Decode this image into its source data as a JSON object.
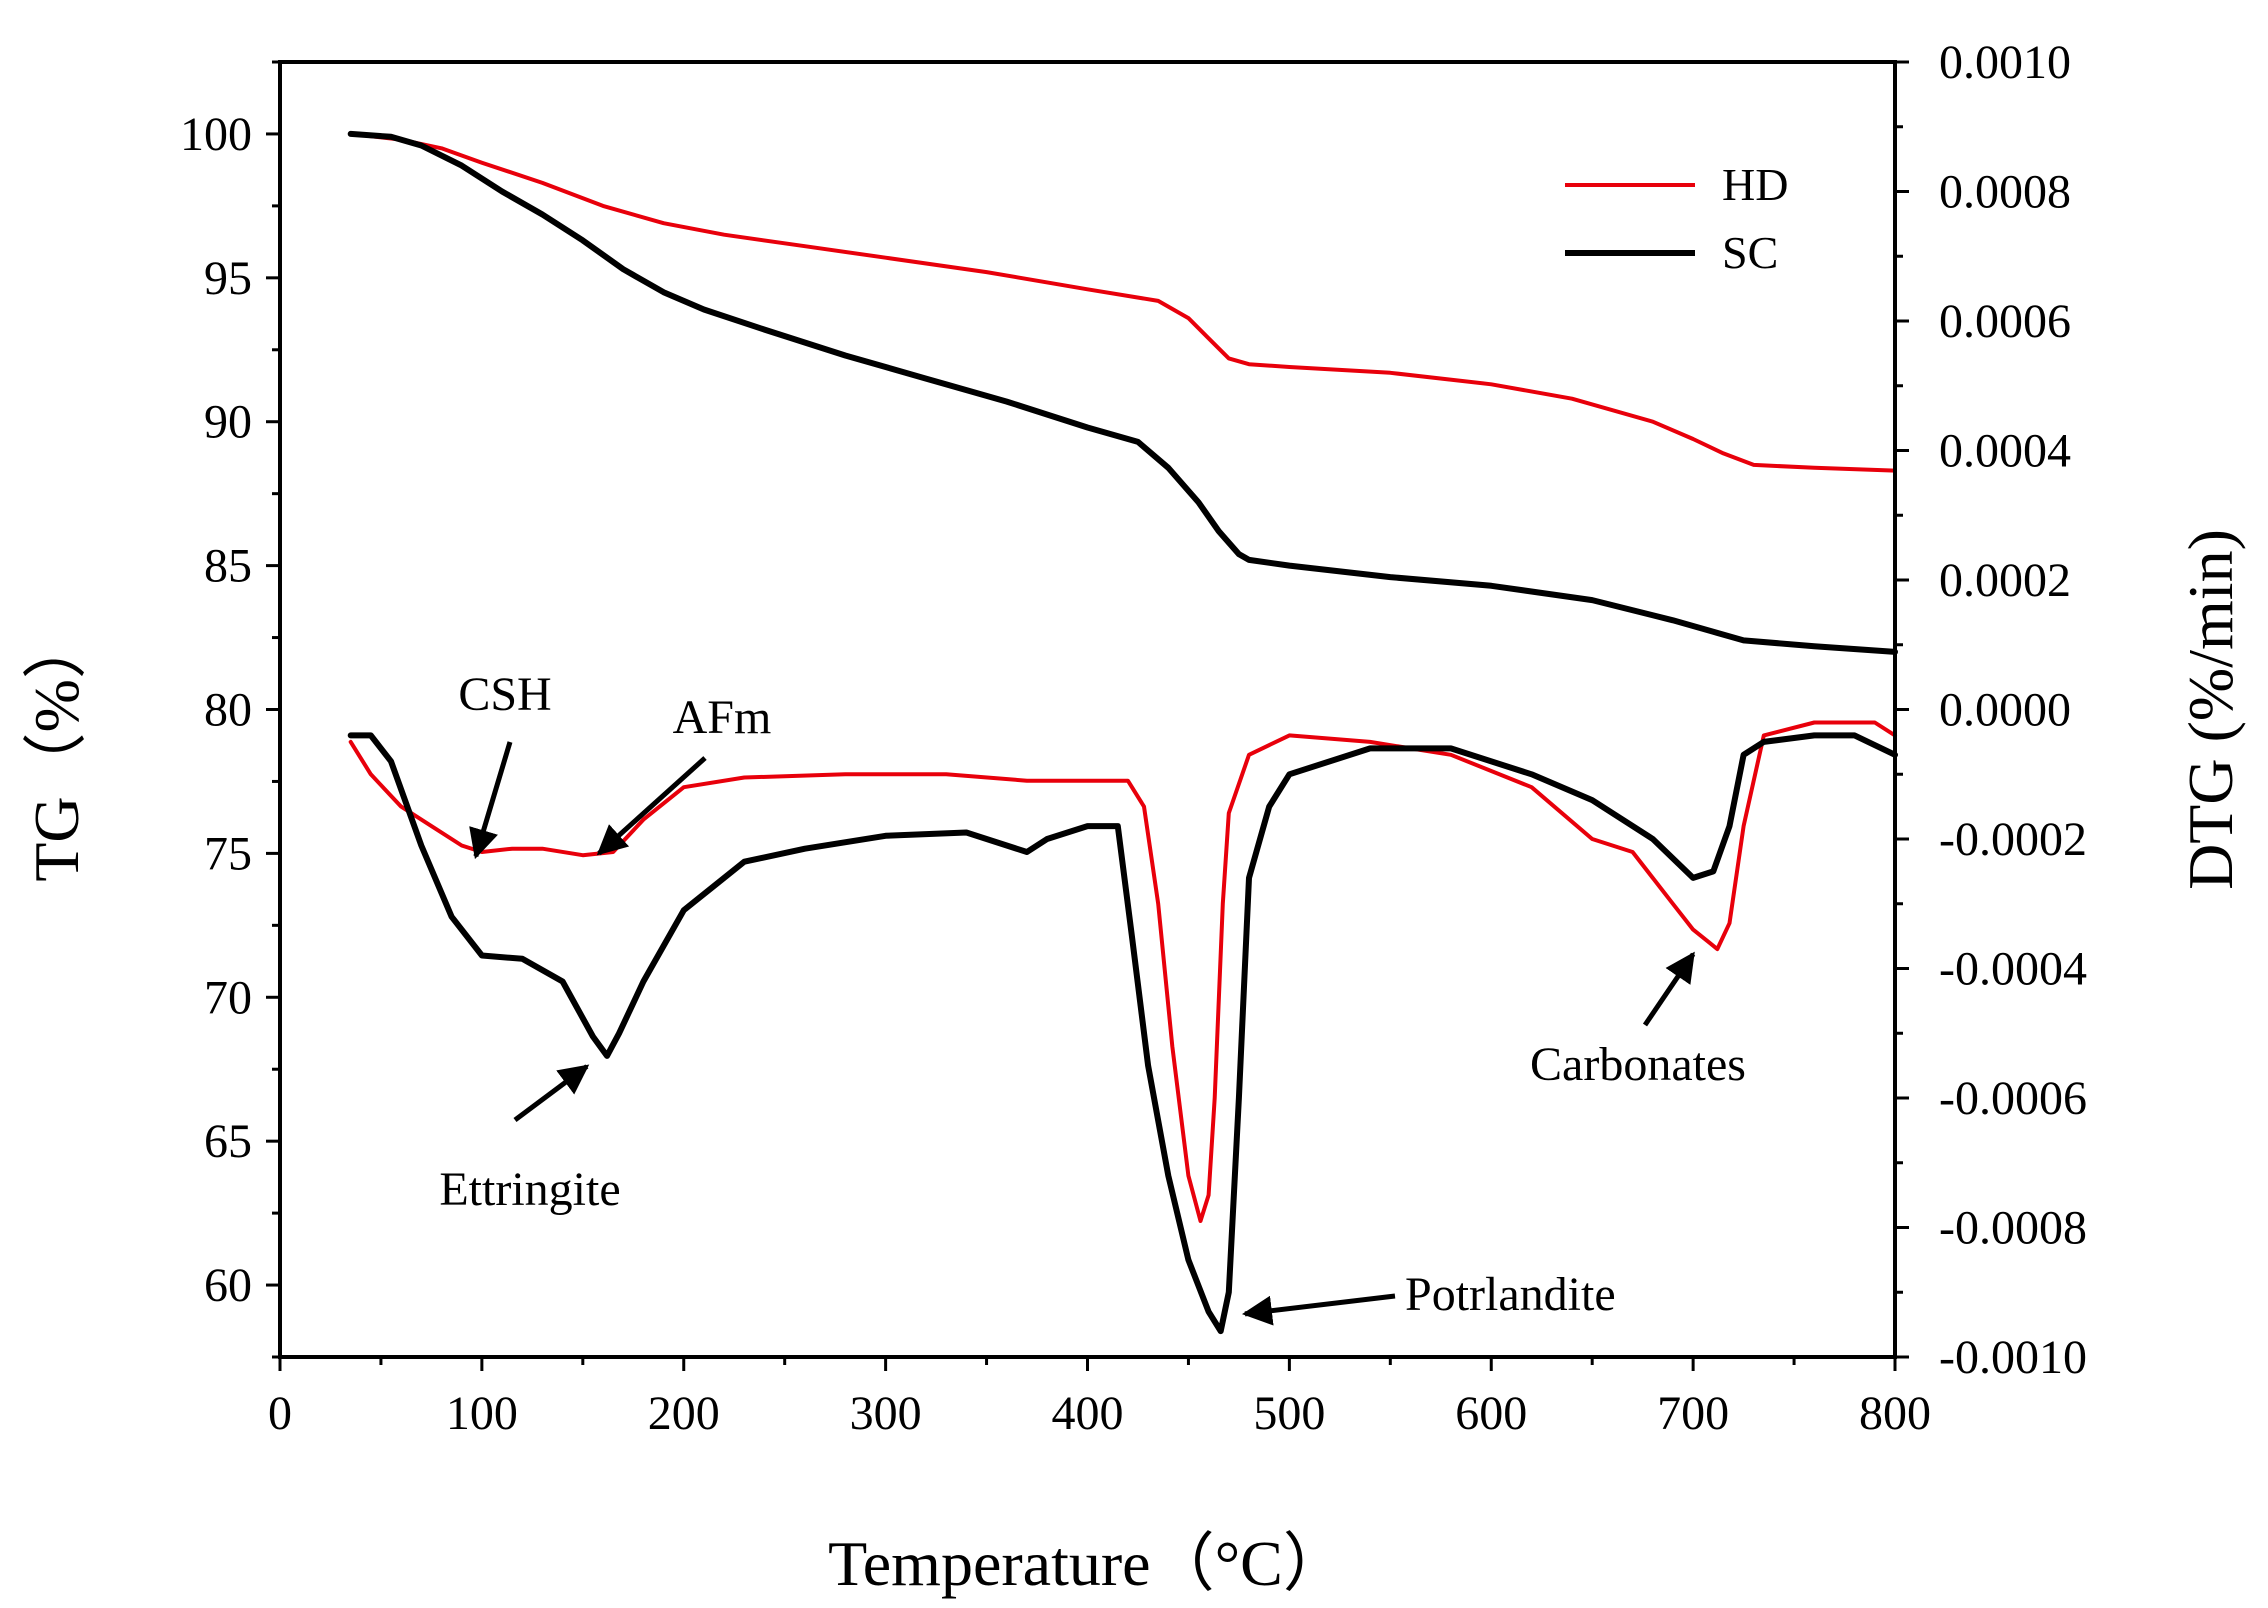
{
  "chart_data": {
    "type": "line",
    "title": "",
    "xlabel": "Temperature（°C）",
    "ylabel_left": "TG（%）",
    "ylabel_right": "DTG (%/min)",
    "xlim": [
      0,
      800
    ],
    "ylim_left": [
      57.5,
      102.5
    ],
    "ylim_right": [
      -0.001,
      0.001
    ],
    "x_ticks": [
      0,
      100,
      200,
      300,
      400,
      500,
      600,
      700,
      800
    ],
    "x_tick_labels": [
      "0",
      "100",
      "200",
      "300",
      "400",
      "500",
      "600",
      "700",
      "800"
    ],
    "y_left_ticks": [
      60,
      65,
      70,
      75,
      80,
      85,
      90,
      95,
      100
    ],
    "y_left_tick_labels": [
      "60",
      "65",
      "70",
      "75",
      "80",
      "85",
      "90",
      "95",
      "100"
    ],
    "y_right_ticks": [
      -0.001,
      -0.0008,
      -0.0006,
      -0.0004,
      -0.0002,
      0.0,
      0.0002,
      0.0004,
      0.0006,
      0.0008,
      0.001
    ],
    "y_right_tick_labels": [
      "-0.0010",
      "-0.0008",
      "-0.0006",
      "-0.0004",
      "-0.0002",
      "0.0000",
      "0.0002",
      "0.0004",
      "0.0006",
      "0.0008",
      "0.0010"
    ],
    "grid": false,
    "legend": {
      "position": "top-right",
      "entries": [
        {
          "label": "HD",
          "color": "#e8000b"
        },
        {
          "label": "SC",
          "color": "#000000"
        }
      ]
    },
    "series": [
      {
        "name": "HD",
        "kind": "TG",
        "axis": "left",
        "color": "#e8000b",
        "x": [
          35,
          60,
          80,
          100,
          130,
          160,
          190,
          220,
          260,
          300,
          350,
          400,
          435,
          450,
          460,
          470,
          480,
          500,
          550,
          600,
          640,
          680,
          700,
          715,
          730,
          760,
          800
        ],
        "y": [
          100.0,
          99.8,
          99.5,
          99.0,
          98.3,
          97.5,
          96.9,
          96.5,
          96.1,
          95.7,
          95.2,
          94.6,
          94.2,
          93.6,
          92.9,
          92.2,
          92.0,
          91.9,
          91.7,
          91.3,
          90.8,
          90.0,
          89.4,
          88.9,
          88.5,
          88.4,
          88.3
        ]
      },
      {
        "name": "SC",
        "kind": "TG",
        "axis": "left",
        "color": "#000000",
        "x": [
          35,
          55,
          70,
          90,
          110,
          130,
          150,
          170,
          190,
          210,
          240,
          280,
          320,
          360,
          400,
          425,
          440,
          455,
          465,
          475,
          480,
          500,
          550,
          600,
          650,
          690,
          710,
          725,
          760,
          800
        ],
        "y": [
          100.0,
          99.9,
          99.6,
          98.9,
          98.0,
          97.2,
          96.3,
          95.3,
          94.5,
          93.9,
          93.2,
          92.3,
          91.5,
          90.7,
          89.8,
          89.3,
          88.4,
          87.2,
          86.2,
          85.4,
          85.2,
          85.0,
          84.6,
          84.3,
          83.8,
          83.1,
          82.7,
          82.4,
          82.2,
          82.0
        ]
      },
      {
        "name": "HD",
        "kind": "DTG",
        "axis": "right",
        "color": "#e8000b",
        "x": [
          35,
          45,
          60,
          75,
          90,
          100,
          115,
          130,
          150,
          165,
          180,
          200,
          230,
          280,
          330,
          370,
          400,
          420,
          428,
          435,
          442,
          450,
          456,
          460,
          463,
          467,
          470,
          480,
          500,
          540,
          580,
          620,
          650,
          670,
          690,
          700,
          708,
          712,
          718,
          725,
          735,
          760,
          790,
          800
        ],
        "y": [
          -5e-05,
          -0.0001,
          -0.00015,
          -0.00018,
          -0.00021,
          -0.00022,
          -0.000215,
          -0.000215,
          -0.000225,
          -0.00022,
          -0.00017,
          -0.00012,
          -0.000105,
          -0.0001,
          -0.0001,
          -0.00011,
          -0.00011,
          -0.00011,
          -0.00015,
          -0.0003,
          -0.00052,
          -0.00072,
          -0.00079,
          -0.00075,
          -0.0006,
          -0.0003,
          -0.00016,
          -7e-05,
          -4e-05,
          -5e-05,
          -7e-05,
          -0.00012,
          -0.0002,
          -0.00022,
          -0.0003,
          -0.00034,
          -0.00036,
          -0.00037,
          -0.00033,
          -0.00018,
          -4e-05,
          -2e-05,
          -2e-05,
          -4e-05
        ]
      },
      {
        "name": "SC",
        "kind": "DTG",
        "axis": "right",
        "color": "#000000",
        "x": [
          35,
          45,
          55,
          70,
          85,
          100,
          120,
          140,
          155,
          162,
          168,
          180,
          200,
          230,
          260,
          300,
          340,
          370,
          380,
          400,
          415,
          422,
          430,
          440,
          450,
          460,
          466,
          470,
          475,
          480,
          490,
          500,
          540,
          580,
          620,
          650,
          680,
          700,
          710,
          718,
          725,
          735,
          760,
          780,
          800
        ],
        "y": [
          -4e-05,
          -4e-05,
          -8e-05,
          -0.00021,
          -0.00032,
          -0.00038,
          -0.000385,
          -0.00042,
          -0.000505,
          -0.000535,
          -0.0005,
          -0.00042,
          -0.00031,
          -0.000235,
          -0.000215,
          -0.000195,
          -0.00019,
          -0.00022,
          -0.0002,
          -0.00018,
          -0.00018,
          -0.00035,
          -0.00055,
          -0.00072,
          -0.00085,
          -0.00093,
          -0.00096,
          -0.0009,
          -0.0006,
          -0.00026,
          -0.00015,
          -0.0001,
          -6e-05,
          -6e-05,
          -0.0001,
          -0.00014,
          -0.0002,
          -0.00026,
          -0.00025,
          -0.00018,
          -7e-05,
          -5e-05,
          -4e-05,
          -4e-05,
          -7e-05
        ]
      }
    ],
    "annotations": [
      {
        "label": "CSH",
        "data_x": 97,
        "data_y": 74.9
      },
      {
        "label": "AFm",
        "data_x": 158,
        "data_y": 75.0
      },
      {
        "label": "Ettringite",
        "data_x": 152,
        "data_y": 67.6
      },
      {
        "label": "Potrlandite",
        "data_x": 478,
        "data_y": 59.0
      },
      {
        "label": "Carbonates",
        "data_x": 700,
        "data_y": 71.5
      }
    ]
  }
}
